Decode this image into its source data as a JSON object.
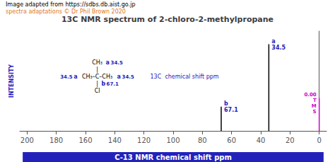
{
  "chart_data": {
    "type": "stem",
    "title": "13C NMR spectrum of 2-chloro-2-methylpropane",
    "subtitle": "Image adapted from https://sdbs.db.aist.go.jp",
    "xlabel": "C-13 NMR chemical shift ppm",
    "ylabel": "INTENSITY",
    "color": "#2222bb",
    "x": [
      34.5,
      67.1,
      0.0
    ],
    "values": [
      1.0,
      0.28,
      0.38
    ],
    "colors": [
      "#000000",
      "#000000",
      "#cc00cc"
    ],
    "xlim": [
      205,
      -5
    ],
    "ylim": [
      0,
      1.15
    ],
    "xticks": [
      200,
      180,
      160,
      140,
      120,
      100,
      80,
      60,
      40,
      20,
      0
    ],
    "grid": false,
    "tick_labels": "x",
    "annotations": [
      {
        "text": "spectra adaptations © Dr Phil Brown 2020",
        "color": "#e07820"
      },
      {
        "text": "a",
        "color": "#2222bb"
      },
      {
        "text": "34.5",
        "color": "#2222bb"
      },
      {
        "text": "b",
        "color": "#2222bb"
      },
      {
        "text": "67.1",
        "color": "#2222bb"
      },
      {
        "text": "0.00",
        "color": "#cc00cc"
      },
      {
        "text": "T",
        "color": "#cc00cc"
      },
      {
        "text": "M",
        "color": "#cc00cc"
      },
      {
        "text": "S",
        "color": "#cc00cc"
      },
      {
        "text": "34.5",
        "color": "#2222bb"
      },
      {
        "text": "a",
        "color": "#2222bb"
      },
      {
        "text": "CH₃",
        "color": "#000000"
      },
      {
        "text": "|",
        "color": "#000000"
      },
      {
        "text": "34.5",
        "color": "#2222bb"
      },
      {
        "text": "a",
        "color": "#2222bb"
      },
      {
        "text": "CH₃–C–CH₃",
        "color": "#000000"
      },
      {
        "text": "a",
        "color": "#2222bb"
      },
      {
        "text": "34.5",
        "color": "#2222bb"
      },
      {
        "text": "|",
        "color": "#000000"
      },
      {
        "text": "b",
        "color": "#2222bb"
      },
      {
        "text": "67.1",
        "color": "#2222bb"
      },
      {
        "text": "Cl",
        "color": "#000000"
      },
      {
        "text": "13C  chemical shift ppm",
        "color": "#2222bb"
      }
    ]
  }
}
